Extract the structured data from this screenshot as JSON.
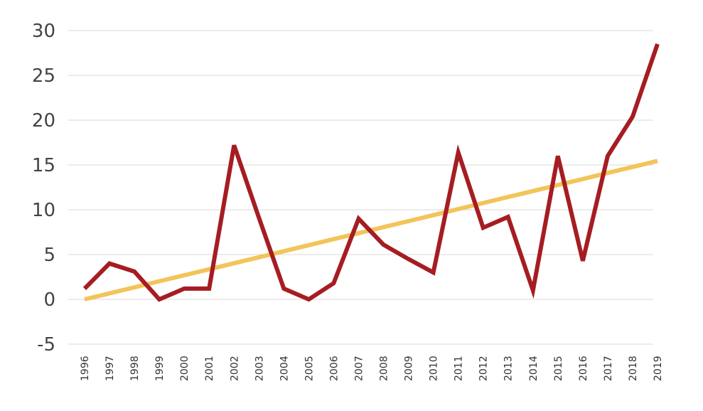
{
  "chart_data": {
    "type": "line",
    "categories": [
      "1996",
      "1997",
      "1998",
      "1999",
      "2000",
      "2001",
      "2002",
      "2003",
      "2004",
      "2005",
      "2006",
      "2007",
      "2008",
      "2009",
      "2010",
      "2011",
      "2012",
      "2013",
      "2014",
      "2015",
      "2016",
      "2017",
      "2018",
      "2019"
    ],
    "series": [
      {
        "color": "#a51d22",
        "values": [
          1.2,
          4.0,
          3.1,
          0.0,
          1.2,
          1.2,
          17.2,
          9.1,
          1.2,
          0.0,
          1.8,
          9.0,
          6.1,
          4.5,
          3.0,
          16.4,
          8.0,
          9.2,
          1.0,
          16.0,
          4.3,
          16.0,
          20.4,
          28.5
        ]
      },
      {
        "color": "#f2c45a",
        "values": [
          0.0,
          0.67,
          1.34,
          2.02,
          2.69,
          3.36,
          4.03,
          4.7,
          5.37,
          6.05,
          6.72,
          7.39,
          8.06,
          8.73,
          9.4,
          10.08,
          10.75,
          11.42,
          12.09,
          12.76,
          13.43,
          14.11,
          14.78,
          15.45
        ]
      }
    ],
    "ylim": [
      -5,
      30
    ],
    "yticks": [
      "30",
      "25",
      "20",
      "15",
      "10",
      "5",
      "0",
      "-5"
    ],
    "grid": true,
    "legend": "none"
  }
}
